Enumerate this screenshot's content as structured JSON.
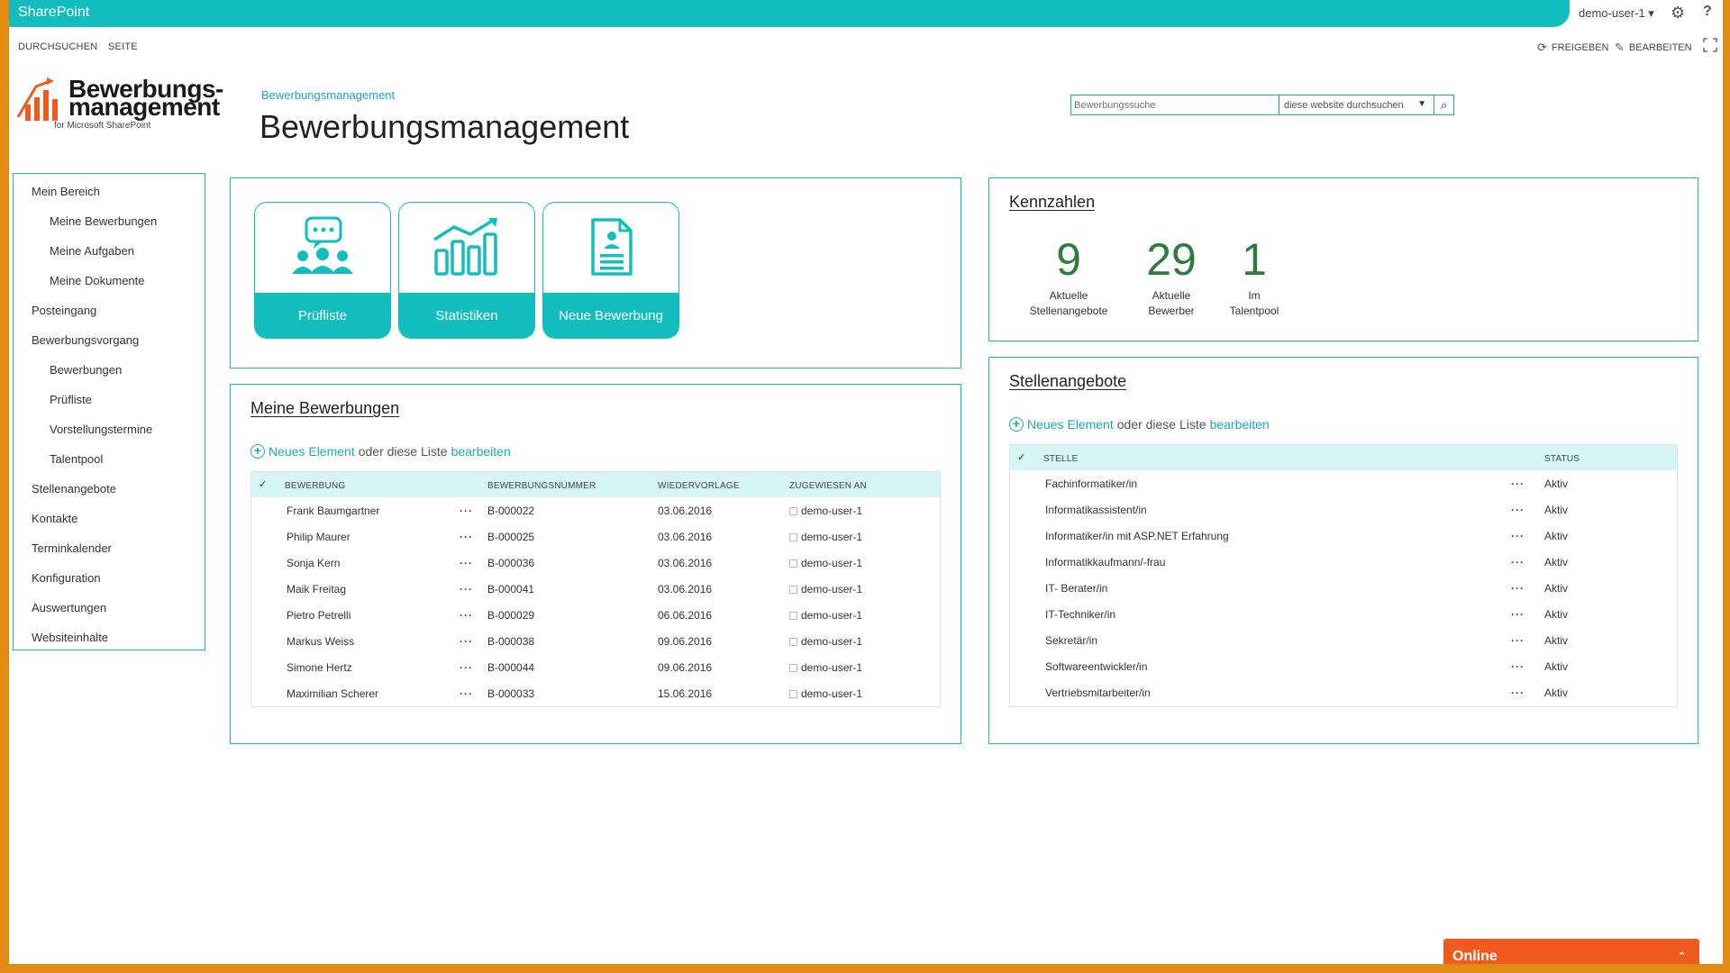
{
  "suite": {
    "brand": "SharePoint",
    "user": "demo-user-1 ▾"
  },
  "ribbon": {
    "tabs": [
      "DURCHSUCHEN",
      "SEITE"
    ],
    "share": "FREIGEBEN",
    "edit": "BEARBEITEN"
  },
  "logo": {
    "line1": "Bewerbungs-",
    "line2": "management",
    "line3": "for Microsoft SharePoint"
  },
  "header": {
    "breadcrumb": "Bewerbungsmanagement",
    "title": "Bewerbungsmanagement"
  },
  "search": {
    "placeholder": "Bewerbungssuche",
    "scope": "diese website durchsuchen"
  },
  "nav": [
    {
      "label": "Mein Bereich",
      "level": 0
    },
    {
      "label": "Meine Bewerbungen",
      "level": 1
    },
    {
      "label": "Meine Aufgaben",
      "level": 1
    },
    {
      "label": "Meine Dokumente",
      "level": 1
    },
    {
      "label": "Posteingang",
      "level": 0
    },
    {
      "label": "Bewerbungsvorgang",
      "level": 0
    },
    {
      "label": "Bewerbungen",
      "level": 1
    },
    {
      "label": "Prüfliste",
      "level": 1
    },
    {
      "label": "Vorstellungstermine",
      "level": 1
    },
    {
      "label": "Talentpool",
      "level": 1
    },
    {
      "label": "Stellenangebote",
      "level": 0
    },
    {
      "label": "Kontakte",
      "level": 0
    },
    {
      "label": "Terminkalender",
      "level": 0
    },
    {
      "label": "Konfiguration",
      "level": 0
    },
    {
      "label": "Auswertungen",
      "level": 0
    },
    {
      "label": "Websiteinhalte",
      "level": 0
    }
  ],
  "tiles": [
    {
      "label": "Prüfliste",
      "icon": "people-chat-icon"
    },
    {
      "label": "Statistiken",
      "icon": "bar-chart-icon"
    },
    {
      "label": "Neue Bewerbung",
      "icon": "document-icon"
    }
  ],
  "kennzahlen": {
    "title": "Kennzahlen",
    "items": [
      {
        "value": "9",
        "label1": "Aktuelle",
        "label2": "Stellenangebote"
      },
      {
        "value": "29",
        "label1": "Aktuelle",
        "label2": "Bewerber"
      },
      {
        "value": "1",
        "label1": "Im",
        "label2": "Talentpool"
      }
    ]
  },
  "add": {
    "new": "Neues Element",
    "middle": "oder diese Liste",
    "edit": "bearbeiten"
  },
  "bewerbungen": {
    "title": "Meine Bewerbungen",
    "columns": [
      "BEWERBUNG",
      "BEWERBUNGSNUMMER",
      "WIEDERVORLAGE",
      "ZUGEWIESEN AN"
    ],
    "rows": [
      {
        "name": "Frank Baumgartner",
        "num": "B-000022",
        "date": "03.06.2016",
        "user": "demo-user-1"
      },
      {
        "name": "Philip Maurer",
        "num": "B-000025",
        "date": "03.06.2016",
        "user": "demo-user-1"
      },
      {
        "name": "Sonja Kern",
        "num": "B-000036",
        "date": "03.06.2016",
        "user": "demo-user-1"
      },
      {
        "name": "Maik Freitag",
        "num": "B-000041",
        "date": "03.06.2016",
        "user": "demo-user-1"
      },
      {
        "name": "Pietro Petrelli",
        "num": "B-000029",
        "date": "06.06.2016",
        "user": "demo-user-1"
      },
      {
        "name": "Markus Weiss",
        "num": "B-000038",
        "date": "09.06.2016",
        "user": "demo-user-1"
      },
      {
        "name": "Simone Hertz",
        "num": "B-000044",
        "date": "09.06.2016",
        "user": "demo-user-1"
      },
      {
        "name": "Maximilian Scherer",
        "num": "B-000033",
        "date": "15.06.2016",
        "user": "demo-user-1"
      }
    ]
  },
  "stellen": {
    "title": "Stellenangebote",
    "columns": [
      "STELLE",
      "STATUS"
    ],
    "rows": [
      {
        "name": "Fachinformatiker/in",
        "status": "Aktiv"
      },
      {
        "name": "Informatikassistent/in",
        "status": "Aktiv"
      },
      {
        "name": "Informatiker/in mit ASP.NET Erfahrung",
        "status": "Aktiv"
      },
      {
        "name": "Informatikkaufmann/-frau",
        "status": "Aktiv"
      },
      {
        "name": "IT- Berater/in",
        "status": "Aktiv"
      },
      {
        "name": "IT-Techniker/in",
        "status": "Aktiv"
      },
      {
        "name": "Sekretär/in",
        "status": "Aktiv"
      },
      {
        "name": "Softwareentwickler/in",
        "status": "Aktiv"
      },
      {
        "name": "Vertriebsmitarbeiter/in",
        "status": "Aktiv"
      }
    ]
  },
  "online": {
    "label": "Online"
  },
  "colors": {
    "accent": "#13bdbd",
    "link": "#1ba9b3",
    "kpi": "#2f7d3c",
    "frame": "#e08a12",
    "chat": "#f05a1e"
  }
}
